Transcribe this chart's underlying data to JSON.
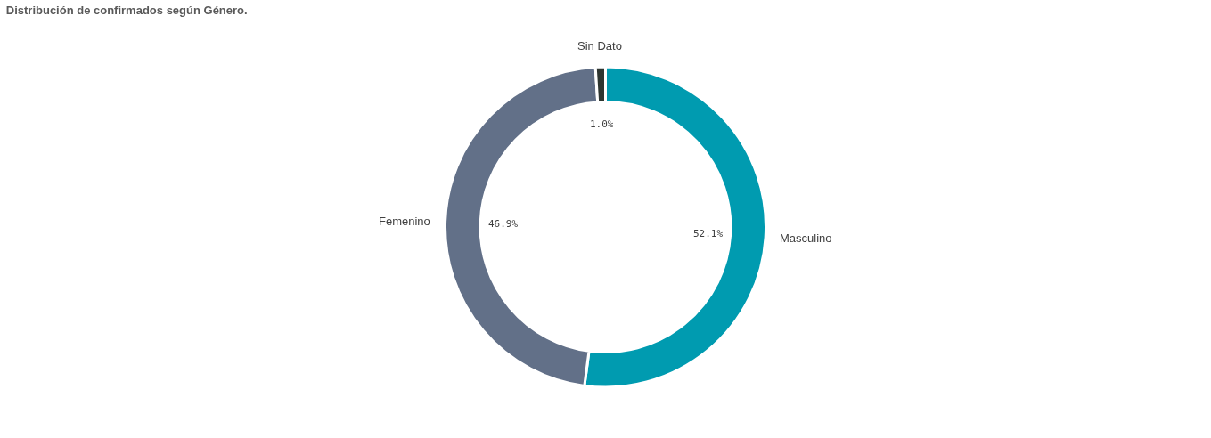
{
  "chart_data": {
    "type": "donut",
    "title": "Distribución de confirmados según Género.",
    "categories": [
      "Masculino",
      "Femenino",
      "Sin Dato"
    ],
    "values": [
      52.1,
      46.9,
      1.0
    ],
    "value_labels": [
      "52.1%",
      "46.9%",
      "1.0%"
    ],
    "colors": [
      "#009bb0",
      "#627088",
      "#2d3530"
    ],
    "legend": false
  }
}
